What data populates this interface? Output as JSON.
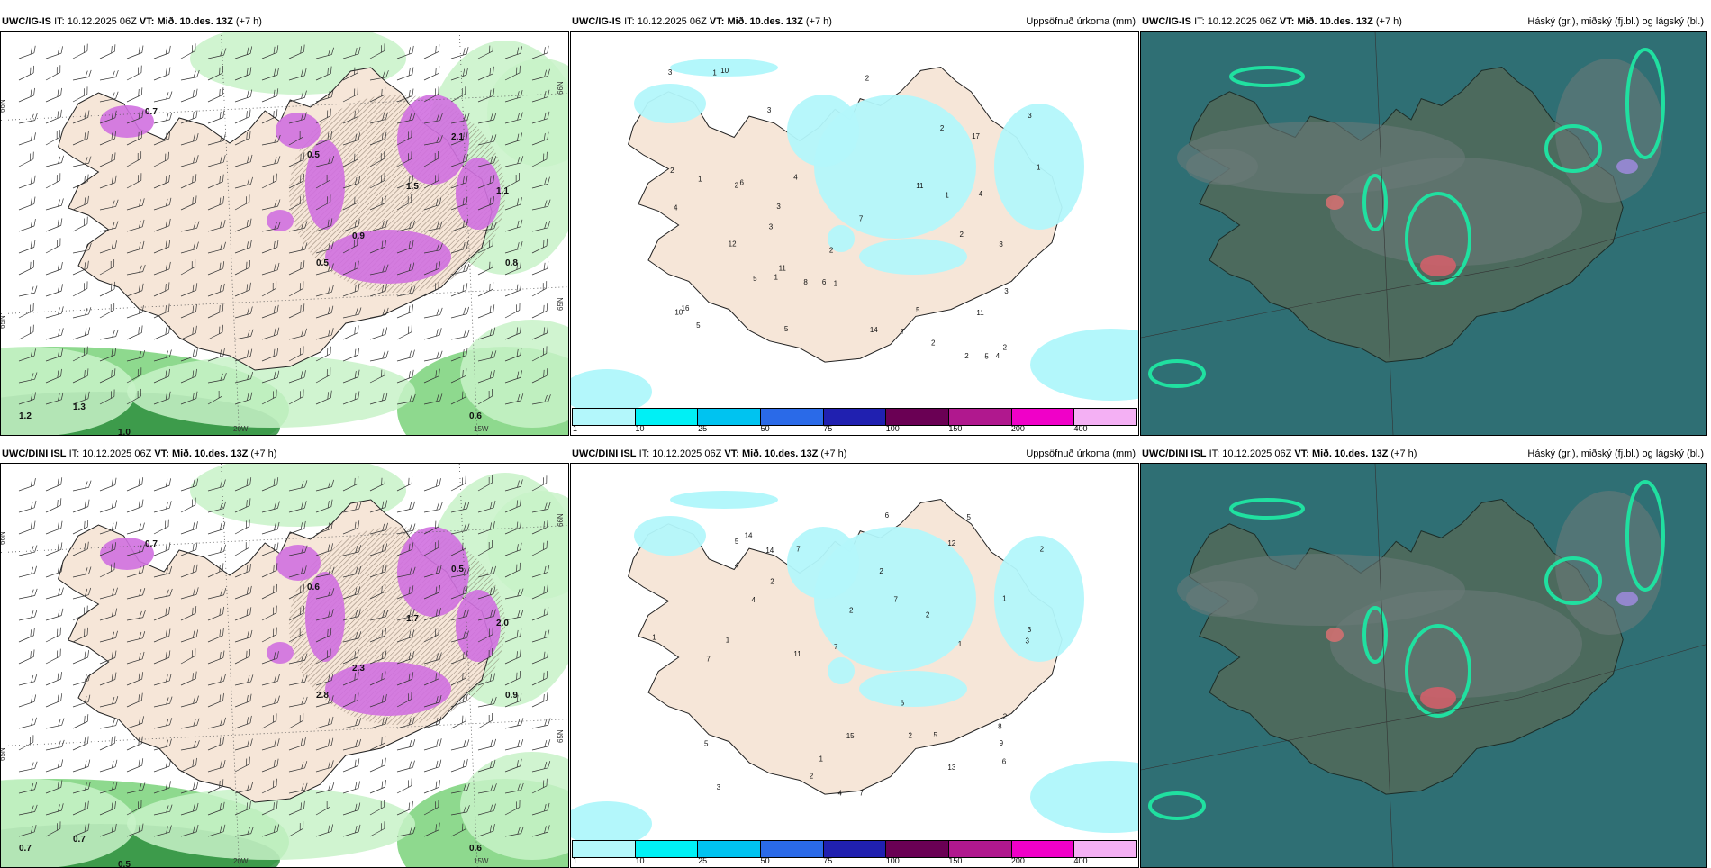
{
  "rows": [
    {
      "model": "UWC/IG-IS",
      "it_label": "IT:",
      "it_value": "10.12.2025 06Z",
      "vt_label": "VT:",
      "vt_value": "Mið. 10.des. 13Z",
      "lead": "(+7 h)",
      "left_labels": {
        "lat1": "66N",
        "lat2": "65N",
        "lon1": "20W",
        "lon2": "15W"
      },
      "left_values": [
        "0.7",
        "0.5",
        "1.2",
        "1.0",
        "0.8",
        "1.3",
        "0.6",
        "2.1",
        "1.5",
        "0.9",
        "0.5",
        "1.1"
      ],
      "precip_numbers": [
        "2",
        "2",
        "1",
        "2",
        "4",
        "3",
        "6",
        "3",
        "1",
        "1",
        "4",
        "2",
        "3",
        "2",
        "3",
        "5",
        "7",
        "1",
        "3",
        "4",
        "5",
        "6",
        "7",
        "5",
        "11",
        "11",
        "14",
        "16",
        "17",
        "10",
        "11",
        "8",
        "5",
        "3",
        "2",
        "2",
        "1",
        "10",
        "12",
        "5",
        "4",
        "2",
        "3",
        "2",
        "1"
      ],
      "precip_title": "Uppsöfnuð úrkoma (mm)",
      "cloud_title": "Háský (gr.), miðský (fj.bl.) og lágský (bl.)"
    },
    {
      "model": "UWC/DINI ISL",
      "it_label": "IT:",
      "it_value": "10.12.2025 06Z",
      "vt_label": "VT:",
      "vt_value": "Mið. 10.des. 13Z",
      "lead": "(+7 h)",
      "left_labels": {
        "lat1": "66N",
        "lat2": "65N",
        "lon1": "20W",
        "lon2": "15W"
      },
      "left_values": [
        "0.7",
        "0.6",
        "0.7",
        "0.5",
        "0.9",
        "0.7",
        "0.6",
        "0.5",
        "1.7",
        "2.3",
        "2.8",
        "2.0"
      ],
      "precip_numbers": [
        "2",
        "1",
        "1",
        "1",
        "6",
        "4",
        "2",
        "5",
        "7",
        "7",
        "4",
        "3",
        "2",
        "6",
        "7",
        "8",
        "7",
        "13",
        "15",
        "14",
        "11",
        "9",
        "5",
        "6",
        "7",
        "2",
        "2",
        "14",
        "5",
        "4",
        "2",
        "12",
        "5",
        "1",
        "2",
        "3",
        "1",
        "3",
        "2"
      ],
      "precip_title": "Uppsöfnuð úrkoma (mm)",
      "cloud_title": "Háský (gr.), miðský (fj.bl.) og lágský (bl.)"
    }
  ],
  "colorbar": {
    "colors": [
      "#b3f7fb",
      "#00f0f5",
      "#00c3f0",
      "#2a6ae8",
      "#2020b0",
      "#6a0054",
      "#b0188e",
      "#f000c8",
      "#f4b0f4"
    ],
    "ticks": [
      "1",
      "10",
      "25",
      "50",
      "75",
      "100",
      "150",
      "200",
      "400"
    ]
  },
  "colors": {
    "land": "#f6e6d8",
    "land_hatch": "#e2d2c0",
    "precip_light": "#b3f7fb",
    "green_light": "#c8f2c8",
    "green_mid": "#7ad27a",
    "green_dark": "#2f8f3f",
    "purple": "#d070e0",
    "cloud_bg": "#2f6f74",
    "cloud_land": "#4e6a5c",
    "cloud_green": "#20e0a0"
  }
}
